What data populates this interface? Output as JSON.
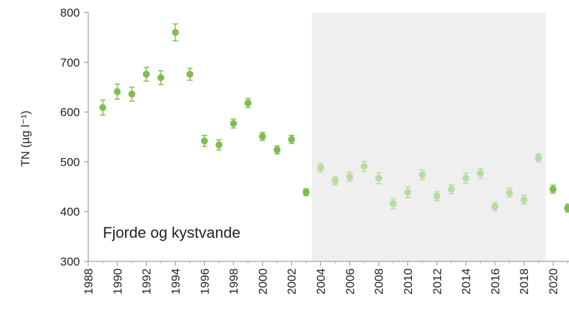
{
  "chart_data": {
    "type": "scatter",
    "ylabel": "TN (µg l⁻¹)",
    "annotation": "Fjorde og kystvande",
    "xlim": [
      1988,
      2021.1
    ],
    "ylim": [
      300,
      800
    ],
    "xticks": [
      1988,
      1990,
      1992,
      1994,
      1996,
      1998,
      2000,
      2002,
      2004,
      2006,
      2008,
      2010,
      2012,
      2014,
      2016,
      2018,
      2020
    ],
    "yticks": [
      300,
      400,
      500,
      600,
      700,
      800
    ],
    "shaded_span": [
      2003.4,
      2019.5
    ],
    "shade_color": "#efefef",
    "series": [
      {
        "color": "#7dbf4f",
        "shaded_color": "#b8dca0",
        "x": [
          1989,
          1990,
          1991,
          1992,
          1993,
          1994,
          1995,
          1996,
          1997,
          1998,
          1999,
          2000,
          2001,
          2002,
          2003,
          2004,
          2005,
          2006,
          2007,
          2008,
          2009,
          2010,
          2011,
          2012,
          2013,
          2014,
          2015,
          2016,
          2017,
          2018,
          2019,
          2020,
          2021
        ],
        "values": [
          609,
          641,
          636,
          676,
          669,
          760,
          676,
          542,
          534,
          577,
          618,
          551,
          524,
          545,
          439,
          488,
          462,
          470,
          491,
          467,
          416,
          439,
          474,
          431,
          445,
          467,
          477,
          410,
          438,
          424,
          508,
          445,
          407
        ],
        "errors": [
          15,
          15,
          14,
          14,
          14,
          17,
          12,
          11,
          10,
          9,
          9,
          8,
          8,
          8,
          7,
          9,
          8,
          9,
          10,
          11,
          10,
          11,
          10,
          9,
          9,
          10,
          10,
          8,
          9,
          9,
          8,
          8,
          8
        ]
      }
    ]
  }
}
